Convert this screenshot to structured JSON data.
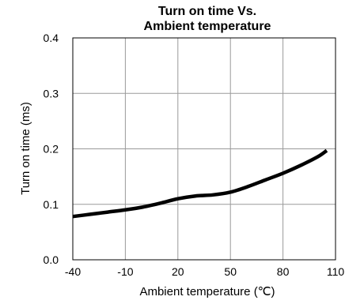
{
  "chart_data": {
    "type": "line",
    "title_lines": [
      "Turn on time Vs.",
      "Ambient temperature"
    ],
    "xlabel": "Ambient temperature (℃)",
    "ylabel": "Turn on time (ms)",
    "xlim": [
      -40,
      110
    ],
    "ylim": [
      0,
      0.4
    ],
    "x_ticks": [
      -40,
      -10,
      20,
      50,
      80,
      110
    ],
    "x_tick_labels": [
      "-40",
      "-10",
      "20",
      "50",
      "80",
      "110"
    ],
    "y_ticks": [
      0,
      0.1,
      0.2,
      0.3,
      0.4
    ],
    "y_tick_labels": [
      "0.0",
      "0.1",
      "0.2",
      "0.3",
      "0.4"
    ],
    "grid": true,
    "line_color": "#000000",
    "series": [
      {
        "x": [
          -40,
          -30,
          -20,
          -10,
          0,
          10,
          20,
          30,
          40,
          50,
          60,
          70,
          80,
          90,
          100,
          105
        ],
        "y": [
          0.078,
          0.082,
          0.086,
          0.09,
          0.095,
          0.102,
          0.11,
          0.115,
          0.117,
          0.122,
          0.132,
          0.144,
          0.156,
          0.17,
          0.186,
          0.197
        ]
      }
    ]
  }
}
